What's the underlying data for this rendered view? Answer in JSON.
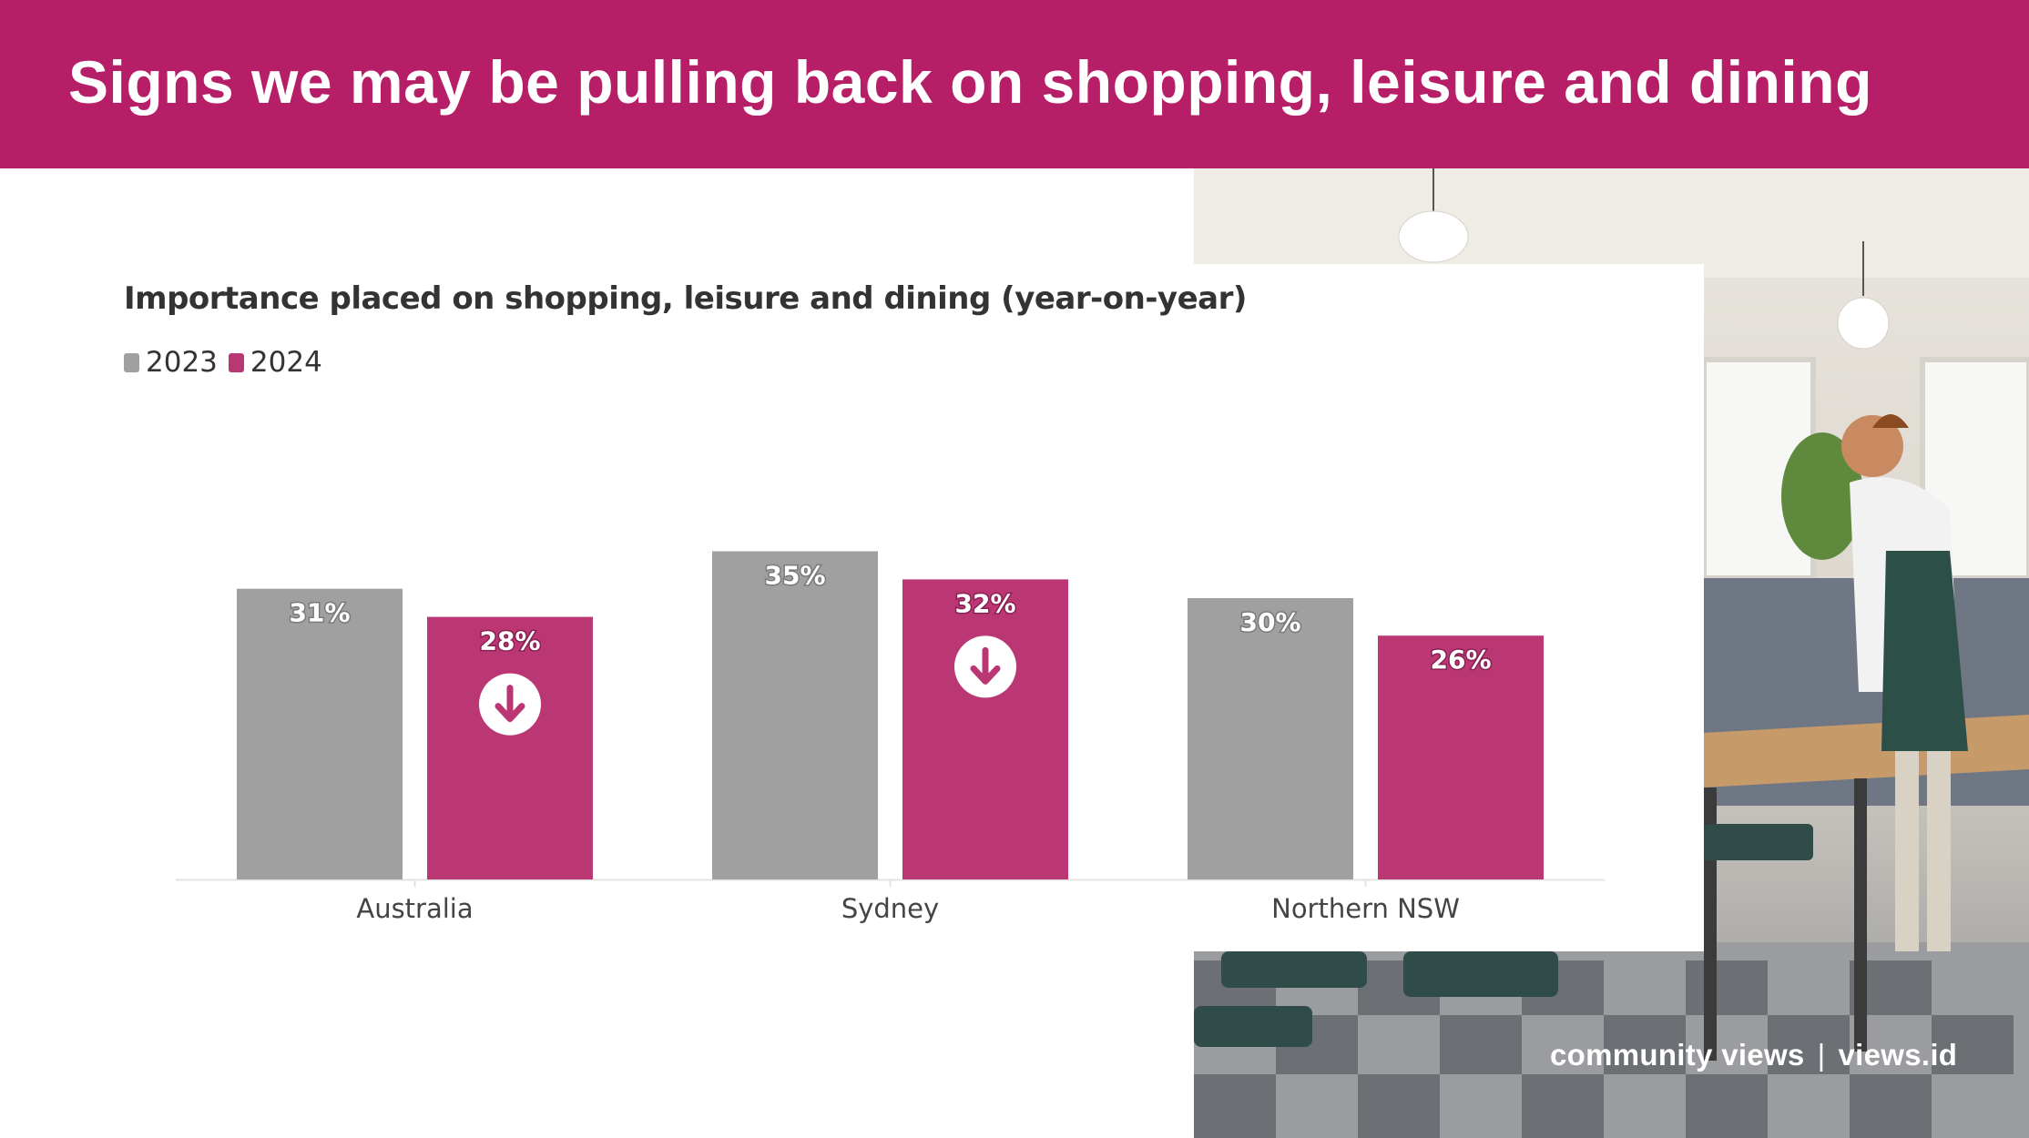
{
  "header": {
    "title": "Signs we may be pulling back on shopping, leisure and dining"
  },
  "chart_data": {
    "type": "bar",
    "title": "Importance placed on shopping, leisure and dining (year-on-year)",
    "categories": [
      "Australia",
      "Sydney",
      "Northern NSW"
    ],
    "series": [
      {
        "name": "2023",
        "values": [
          31,
          35,
          30
        ],
        "color": "#a0a0a0"
      },
      {
        "name": "2024",
        "values": [
          28,
          32,
          26
        ],
        "color": "#bb3774"
      }
    ],
    "data_labels": [
      [
        "31%",
        "35%",
        "30%"
      ],
      [
        "28%",
        "32%",
        "26%"
      ]
    ],
    "decrease_markers": [
      "Australia",
      "Sydney"
    ],
    "legend_position": "top-left",
    "grid": false,
    "ylim": [
      0,
      35
    ]
  },
  "icons": {
    "decrease": "arrow-down-circle-icon"
  },
  "footer": {
    "brand": "community views",
    "separator": "|",
    "site": "views.id"
  },
  "colors": {
    "header_bg": "#b61f68",
    "accent": "#bb3774",
    "gray": "#a0a0a0"
  }
}
